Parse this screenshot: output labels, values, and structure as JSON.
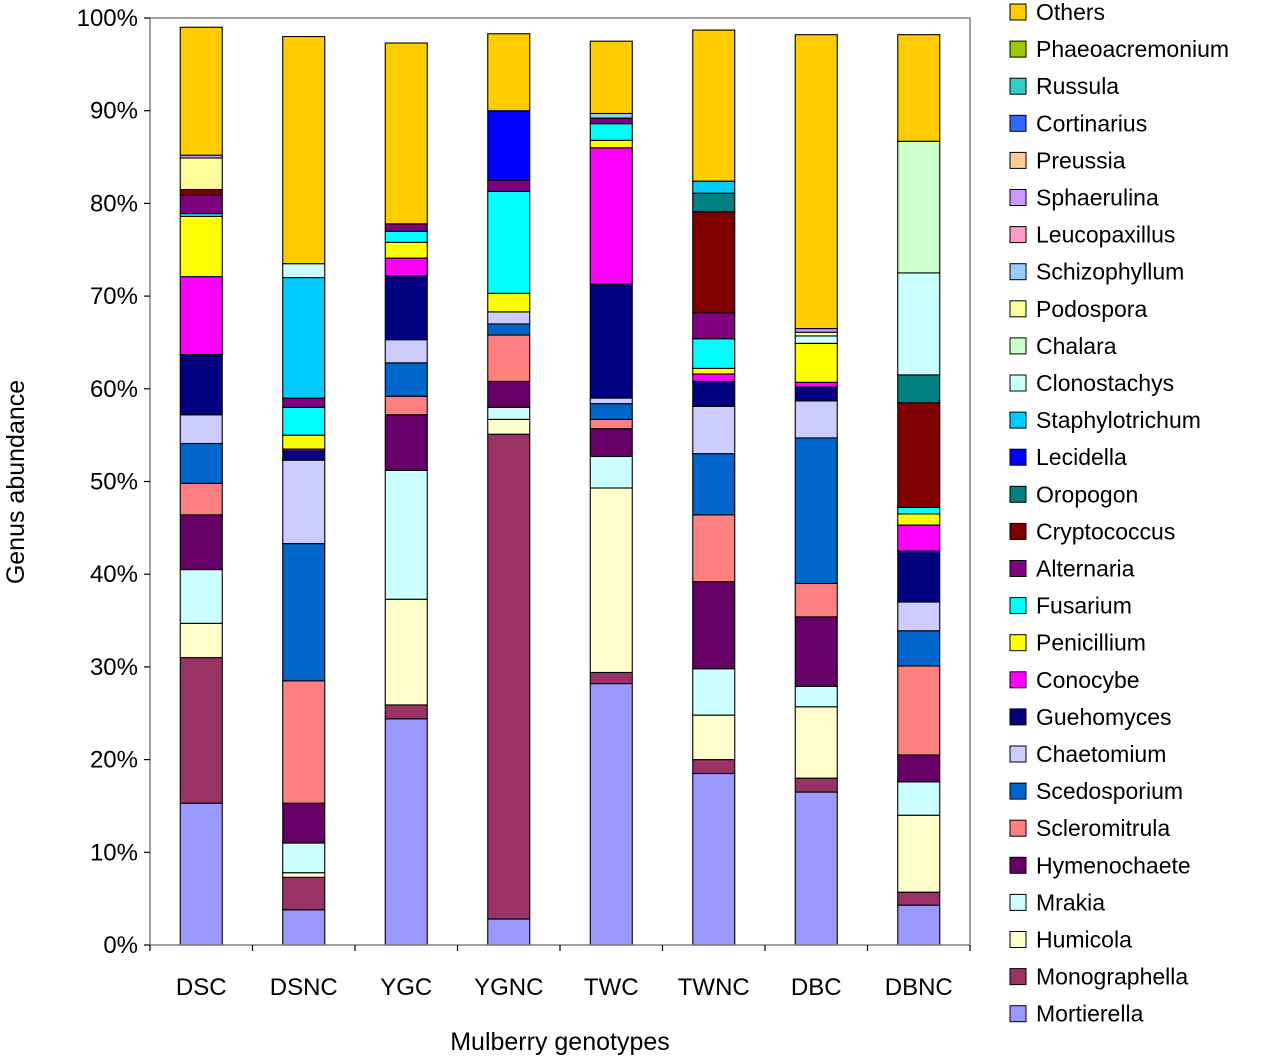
{
  "chart_data": {
    "type": "stacked-bar-percent",
    "xlabel": "Mulberry genotypes",
    "ylabel": "Genus abundance",
    "ylim": [
      0,
      100
    ],
    "y_ticks": [
      "0%",
      "10%",
      "20%",
      "30%",
      "40%",
      "50%",
      "60%",
      "70%",
      "80%",
      "90%",
      "100%"
    ],
    "grid": false,
    "legend_position": "right",
    "categories": [
      "DSC",
      "DSNC",
      "YGC",
      "YGNC",
      "TWC",
      "TWNC",
      "DBC",
      "DBNC"
    ],
    "series": [
      {
        "name": "Mortierella",
        "color": "#9999ff",
        "values": [
          15.3,
          3.8,
          24.4,
          2.8,
          28.2,
          18.5,
          16.5,
          4.3
        ]
      },
      {
        "name": "Monographella",
        "color": "#993366",
        "values": [
          15.7,
          3.5,
          1.5,
          52.3,
          1.2,
          1.5,
          1.5,
          1.4
        ]
      },
      {
        "name": "Humicola",
        "color": "#ffffcc",
        "values": [
          3.7,
          0.5,
          11.4,
          1.6,
          19.9,
          4.8,
          7.7,
          8.3
        ]
      },
      {
        "name": "Mrakia",
        "color": "#ccffff",
        "values": [
          5.8,
          3.2,
          13.9,
          1.3,
          3.4,
          5.0,
          2.2,
          3.6
        ]
      },
      {
        "name": "Hymenochaete",
        "color": "#660066",
        "values": [
          5.9,
          4.3,
          6.0,
          2.8,
          3.0,
          9.4,
          7.5,
          2.9
        ]
      },
      {
        "name": "Scleromitrula",
        "color": "#ff8080",
        "values": [
          3.4,
          13.2,
          2.0,
          5.0,
          1.0,
          7.2,
          3.6,
          9.6
        ]
      },
      {
        "name": "Scedosporium",
        "color": "#0066cc",
        "values": [
          4.3,
          14.8,
          3.6,
          1.2,
          1.7,
          6.6,
          15.7,
          3.8
        ]
      },
      {
        "name": "Chaetomium",
        "color": "#ccccff",
        "values": [
          3.1,
          9.0,
          2.5,
          1.3,
          0.6,
          5.1,
          4.0,
          3.1
        ]
      },
      {
        "name": "Guehomyces",
        "color": "#000080",
        "values": [
          6.5,
          1.0,
          6.9,
          0.0,
          12.3,
          2.7,
          1.5,
          5.5
        ]
      },
      {
        "name": "Conocybe",
        "color": "#ff00ff",
        "values": [
          8.4,
          0.2,
          1.9,
          0.0,
          14.7,
          0.8,
          0.5,
          2.8
        ]
      },
      {
        "name": "Penicillium",
        "color": "#ffff00",
        "values": [
          6.5,
          1.5,
          1.7,
          2.0,
          0.8,
          0.6,
          4.2,
          1.2
        ]
      },
      {
        "name": "Fusarium",
        "color": "#00ffff",
        "values": [
          0.3,
          3.0,
          1.2,
          11.0,
          1.8,
          3.2,
          0.0,
          0.7
        ]
      },
      {
        "name": "Alternaria",
        "color": "#800080",
        "values": [
          2.0,
          1.0,
          0.8,
          1.2,
          0.6,
          2.8,
          0.0,
          0.0
        ]
      },
      {
        "name": "Cryptococcus",
        "color": "#800000",
        "values": [
          0.6,
          0.0,
          0.0,
          0.0,
          0.0,
          10.9,
          0.0,
          11.3
        ]
      },
      {
        "name": "Oropogon",
        "color": "#008080",
        "values": [
          0.0,
          0.0,
          0.0,
          0.0,
          0.0,
          2.0,
          0.0,
          3.0
        ]
      },
      {
        "name": "Lecidella",
        "color": "#0000ff",
        "values": [
          0.0,
          0.0,
          0.0,
          7.5,
          0.0,
          0.0,
          0.0,
          0.0
        ]
      },
      {
        "name": "Staphylotrichum",
        "color": "#00ccff",
        "values": [
          0.0,
          13.0,
          0.0,
          0.0,
          0.0,
          1.3,
          0.0,
          0.0
        ]
      },
      {
        "name": "Clonostachys",
        "color": "#ccffff",
        "values": [
          0.0,
          1.5,
          0.0,
          0.0,
          0.0,
          0.0,
          0.8,
          11.0
        ]
      },
      {
        "name": "Chalara",
        "color": "#ccffcc",
        "values": [
          0.0,
          0.0,
          0.0,
          0.0,
          0.0,
          0.0,
          0.0,
          14.2
        ]
      },
      {
        "name": "Podospora",
        "color": "#ffff99",
        "values": [
          3.4,
          0.0,
          0.0,
          0.0,
          0.0,
          0.0,
          0.4,
          0.0
        ]
      },
      {
        "name": "Schizophyllum",
        "color": "#99ccff",
        "values": [
          0.0,
          0.0,
          0.0,
          0.0,
          0.5,
          0.0,
          0.0,
          0.0
        ]
      },
      {
        "name": "Leucopaxillus",
        "color": "#ff99cc",
        "values": [
          0.0,
          0.0,
          0.0,
          0.0,
          0.0,
          0.0,
          0.0,
          0.0
        ]
      },
      {
        "name": "Sphaerulina",
        "color": "#cc99ff",
        "values": [
          0.3,
          0.0,
          0.0,
          0.0,
          0.0,
          0.0,
          0.4,
          0.0
        ]
      },
      {
        "name": "Preussia",
        "color": "#ffcc99",
        "values": [
          0.0,
          0.0,
          0.0,
          0.0,
          0.0,
          0.0,
          0.0,
          0.0
        ]
      },
      {
        "name": "Cortinarius",
        "color": "#3366ff",
        "values": [
          0.0,
          0.0,
          0.0,
          0.0,
          0.0,
          0.0,
          0.0,
          0.0
        ]
      },
      {
        "name": "Russula",
        "color": "#33cccc",
        "values": [
          0.0,
          0.0,
          0.0,
          0.0,
          0.0,
          0.0,
          0.0,
          0.0
        ]
      },
      {
        "name": "Phaeoacremonium",
        "color": "#99cc00",
        "values": [
          0.0,
          0.0,
          0.0,
          0.0,
          0.0,
          0.0,
          0.0,
          0.0
        ]
      },
      {
        "name": "Others",
        "color": "#ffcc00",
        "values": [
          13.8,
          24.5,
          19.5,
          8.3,
          7.8,
          16.3,
          31.7,
          11.5
        ]
      }
    ]
  }
}
